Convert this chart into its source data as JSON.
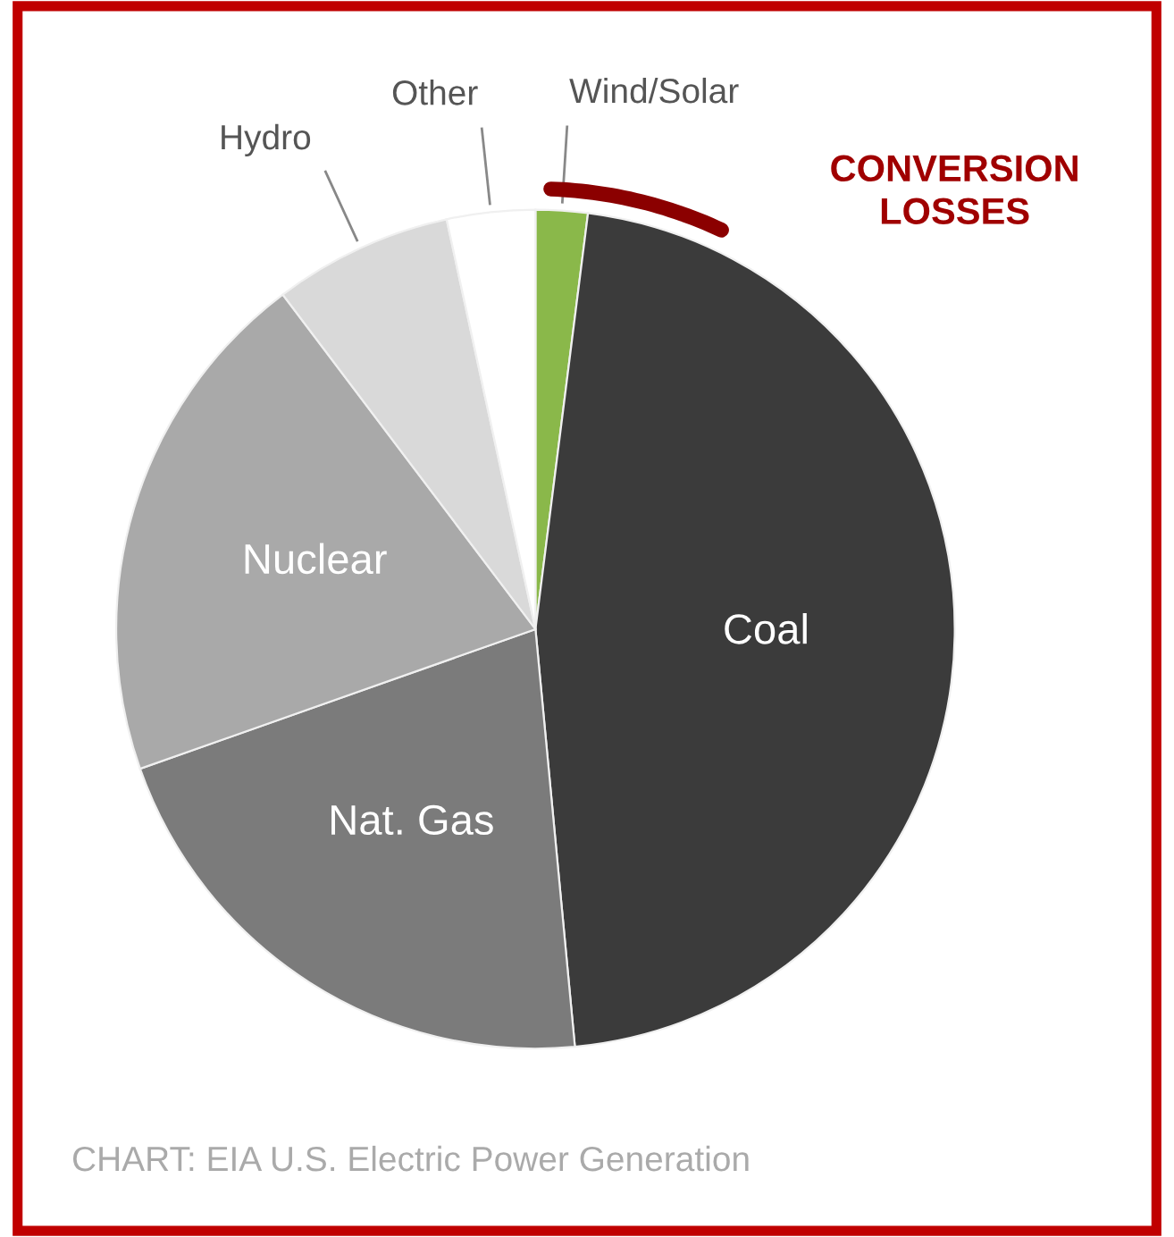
{
  "chart_data": {
    "type": "pie",
    "categories": [
      "Wind/Solar",
      "Coal",
      "Nat. Gas",
      "Nuclear",
      "Hydro",
      "Other"
    ],
    "values": [
      2,
      46.5,
      21.1,
      20.1,
      6.9,
      3.4
    ],
    "colors": [
      "#8ab84a",
      "#3b3b3b",
      "#7b7b7b",
      "#a9a9a9",
      "#d9d9d9",
      "#ffffff"
    ],
    "annotations": [
      "CONVERSION LOSSES",
      "CHART: EIA U.S. Electric Power Generation"
    ],
    "legend": false
  }
}
